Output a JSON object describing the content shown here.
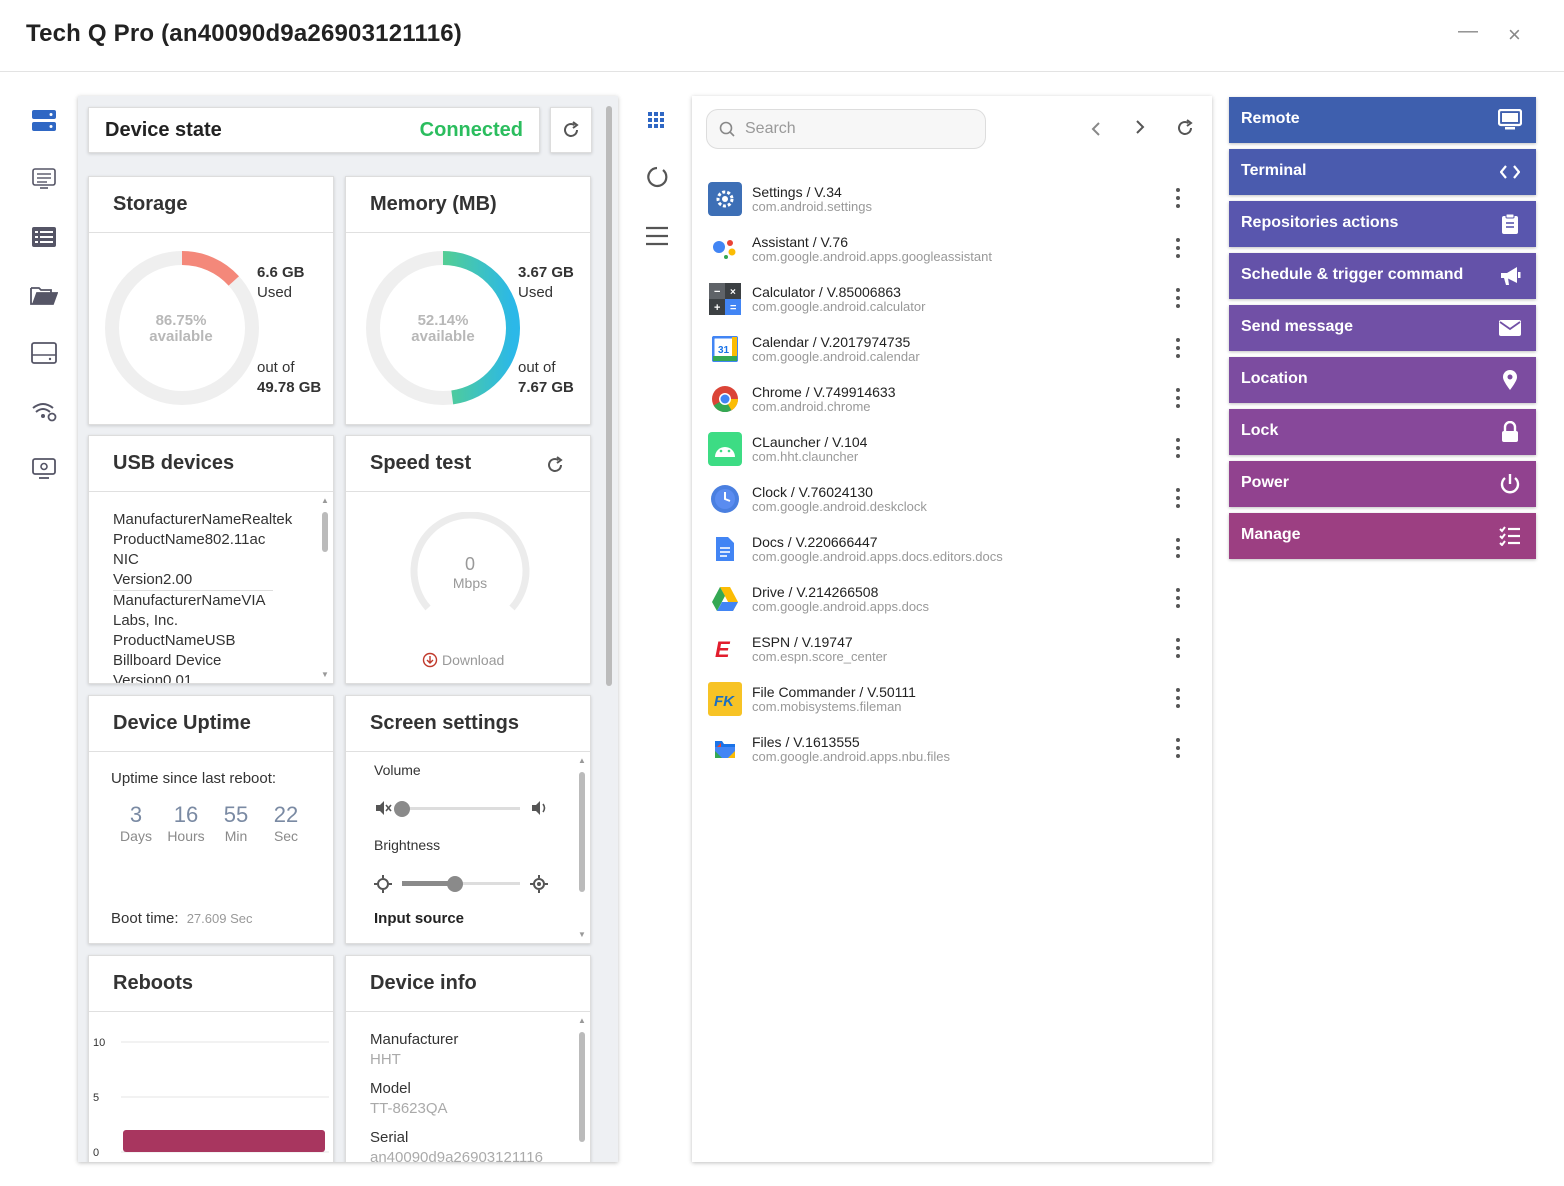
{
  "window": {
    "title": "Tech Q Pro (an40090d9a26903121116)",
    "minimize": "—",
    "close": "×"
  },
  "device_state": {
    "label": "Device state",
    "status": "Connected"
  },
  "storage": {
    "title": "Storage",
    "percent": "86.75%",
    "available_label": "available",
    "used_value": "6.6 GB",
    "used_label": "Used",
    "out_of_label": "out of",
    "total": "49.78 GB",
    "used_fraction": 0.1325,
    "color": "#f4887a"
  },
  "memory": {
    "title": "Memory (MB)",
    "percent": "52.14%",
    "available_label": "available",
    "used_value": "3.67 GB",
    "used_label": "Used",
    "out_of_label": "out of",
    "total": "7.67 GB",
    "used_fraction": 0.4786
  },
  "usb": {
    "title": "USB devices",
    "lines": [
      "ManufacturerNameRealtek",
      "ProductName802.11ac",
      "NIC",
      "Version2.00",
      "ManufacturerNameVIA",
      "Labs, Inc.",
      "ProductNameUSB",
      "Billboard Device",
      "Version0.01"
    ]
  },
  "speed": {
    "title": "Speed test",
    "value": "0",
    "unit": "Mbps",
    "download": "Download"
  },
  "uptime": {
    "title": "Device Uptime",
    "since_label": "Uptime since last reboot:",
    "days": "3",
    "days_label": "Days",
    "hours": "16",
    "hours_label": "Hours",
    "min": "55",
    "min_label": "Min",
    "sec": "22",
    "sec_label": "Sec",
    "boot_label": "Boot time:",
    "boot_value": "27.609 Sec"
  },
  "screen": {
    "title": "Screen settings",
    "volume_label": "Volume",
    "volume_level": 0,
    "brightness_label": "Brightness",
    "brightness_level": 0.45,
    "input_label": "Input source"
  },
  "reboots": {
    "title": "Reboots"
  },
  "chart_data": {
    "type": "bar",
    "categories": [
      ""
    ],
    "values": [
      2
    ],
    "ylim": [
      0,
      10
    ],
    "yticks": [
      "10",
      "5",
      "0"
    ],
    "color": "#a8365f"
  },
  "device_info": {
    "title": "Device info",
    "manufacturer_label": "Manufacturer",
    "manufacturer": "HHT",
    "model_label": "Model",
    "model": "TT-8623QA",
    "serial_label": "Serial",
    "serial": "an40090d9a26903121116"
  },
  "search": {
    "placeholder": "Search"
  },
  "apps": [
    {
      "name": "Settings / V.34",
      "pkg": "com.android.settings",
      "icon": "settings-icon",
      "color": "#3d6fb6"
    },
    {
      "name": "Assistant / V.76",
      "pkg": "com.google.android.apps.googleassistant",
      "icon": "assistant-icon",
      "color": "#4285f4"
    },
    {
      "name": "Calculator / V.85006863",
      "pkg": "com.google.android.calculator",
      "icon": "calculator-icon",
      "color": "#5f6368"
    },
    {
      "name": "Calendar / V.2017974735",
      "pkg": "com.google.android.calendar",
      "icon": "calendar-icon",
      "color": "#1a73e8"
    },
    {
      "name": "Chrome / V.749914633",
      "pkg": "com.android.chrome",
      "icon": "chrome-icon",
      "color": "#db4437"
    },
    {
      "name": "CLauncher / V.104",
      "pkg": "com.hht.clauncher",
      "icon": "android-icon",
      "color": "#3ddc84"
    },
    {
      "name": "Clock / V.76024130",
      "pkg": "com.google.android.deskclock",
      "icon": "clock-icon",
      "color": "#4a7fe0"
    },
    {
      "name": "Docs / V.220666447",
      "pkg": "com.google.android.apps.docs.editors.docs",
      "icon": "docs-icon",
      "color": "#4285f4"
    },
    {
      "name": "Drive / V.214266508",
      "pkg": "com.google.android.apps.docs",
      "icon": "drive-icon",
      "color": "#fbbc04"
    },
    {
      "name": "ESPN / V.19747",
      "pkg": "com.espn.score_center",
      "icon": "espn-icon",
      "color": "#e21d2d"
    },
    {
      "name": "File Commander / V.50111",
      "pkg": "com.mobisystems.fileman",
      "icon": "file-commander-icon",
      "color": "#f7c325"
    },
    {
      "name": "Files / V.1613555",
      "pkg": "com.google.android.apps.nbu.files",
      "icon": "files-icon",
      "color": "#1a73e8"
    }
  ],
  "actions": [
    {
      "label": "Remote",
      "icon": "monitor-icon",
      "color": "#3e5fae"
    },
    {
      "label": "Terminal",
      "icon": "code-icon",
      "color": "#4a5bae"
    },
    {
      "label": "Repositories actions",
      "icon": "clipboard-icon",
      "color": "#5956ae"
    },
    {
      "label": "Schedule & trigger command",
      "icon": "megaphone-icon",
      "color": "#6452a9"
    },
    {
      "label": "Send message",
      "icon": "envelope-icon",
      "color": "#7150a6"
    },
    {
      "label": "Location",
      "icon": "map-pin-icon",
      "color": "#7c4ca0"
    },
    {
      "label": "Lock",
      "icon": "lock-icon",
      "color": "#87489a"
    },
    {
      "label": "Power",
      "icon": "power-icon",
      "color": "#91428f"
    },
    {
      "label": "Manage",
      "icon": "checklist-icon",
      "color": "#9c3f82"
    }
  ]
}
